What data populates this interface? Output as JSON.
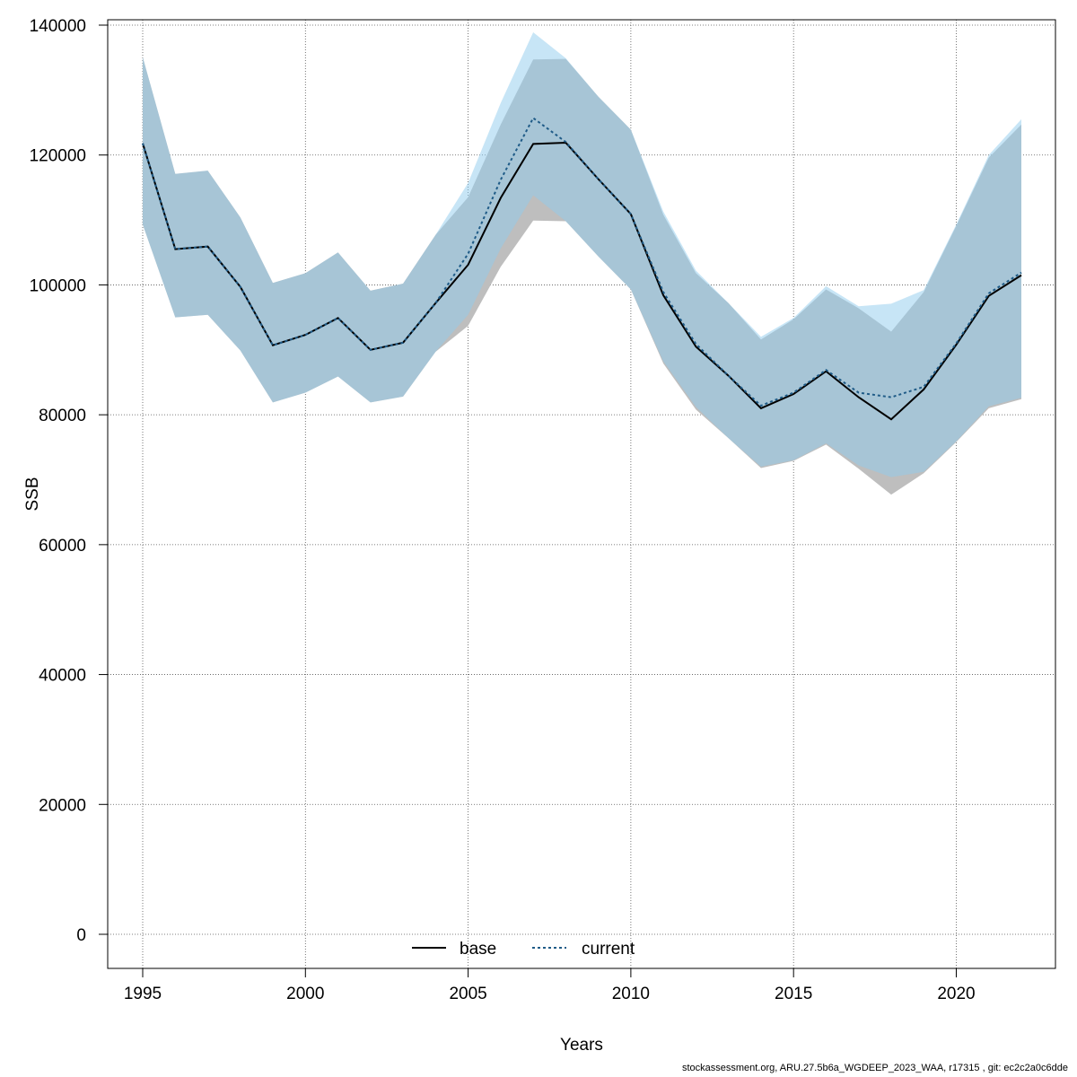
{
  "chart_data": {
    "type": "line",
    "xlabel": "Years",
    "ylabel": "SSB",
    "xlim": [
      1995,
      2022
    ],
    "ylim": [
      0,
      140000
    ],
    "x_ticks": [
      1995,
      2000,
      2005,
      2010,
      2015,
      2020
    ],
    "y_ticks": [
      0,
      20000,
      40000,
      60000,
      80000,
      100000,
      120000,
      140000
    ],
    "grid": true,
    "legend_position": "bottom-center",
    "x": [
      1995,
      1996,
      1997,
      1998,
      1999,
      2000,
      2001,
      2002,
      2003,
      2004,
      2005,
      2006,
      2007,
      2008,
      2009,
      2010,
      2011,
      2012,
      2013,
      2014,
      2015,
      2016,
      2017,
      2018,
      2019,
      2020,
      2021,
      2022
    ],
    "series": [
      {
        "name": "base",
        "line_style": "solid",
        "line_color": "#000000",
        "band_color": "#bebebe",
        "values": [
          121800,
          105500,
          105900,
          99700,
          90700,
          92300,
          94900,
          90000,
          91100,
          97200,
          103100,
          113400,
          121700,
          121900,
          116300,
          110900,
          98400,
          90500,
          86000,
          81000,
          83200,
          86700,
          82700,
          79300,
          83900,
          90800,
          98300,
          101500
        ],
        "lower": [
          109300,
          95000,
          95400,
          89900,
          81900,
          83400,
          85900,
          81900,
          82800,
          89700,
          93700,
          102800,
          109900,
          109800,
          104400,
          99300,
          87900,
          80800,
          76400,
          71800,
          72900,
          75400,
          71700,
          67700,
          71000,
          75800,
          81000,
          82400
        ],
        "upper": [
          135100,
          117100,
          117600,
          110400,
          100300,
          101800,
          105000,
          99100,
          100200,
          107700,
          113500,
          124700,
          134700,
          134800,
          129000,
          123900,
          110800,
          101800,
          97200,
          91600,
          94700,
          99300,
          96400,
          92800,
          98900,
          109100,
          119600,
          124700
        ]
      },
      {
        "name": "current",
        "line_style": "dotted",
        "line_color": "#1f5b87",
        "band_color": "#8fcbee",
        "values": [
          121800,
          105500,
          105900,
          99700,
          90700,
          92300,
          94900,
          90000,
          91100,
          97200,
          104800,
          116200,
          125700,
          122000,
          116300,
          110900,
          98900,
          90900,
          86000,
          81400,
          83400,
          86900,
          83400,
          82700,
          84300,
          91000,
          98700,
          101900
        ],
        "lower": [
          109300,
          95000,
          95400,
          89900,
          81900,
          83400,
          85900,
          81900,
          82800,
          89700,
          95400,
          105600,
          113800,
          109800,
          104400,
          99300,
          88200,
          81200,
          76400,
          72000,
          73000,
          75600,
          72200,
          70400,
          71200,
          75900,
          81300,
          82600
        ],
        "upper": [
          135100,
          117100,
          117600,
          110400,
          100300,
          101800,
          105000,
          99100,
          100200,
          107700,
          115700,
          128000,
          138900,
          134900,
          129000,
          123900,
          111300,
          102200,
          97200,
          92000,
          94900,
          99800,
          96700,
          97100,
          99200,
          109300,
          120000,
          125500
        ]
      }
    ]
  },
  "footer_text": "stockassessment.org, ARU.27.5b6a_WGDEEP_2023_WAA, r17315 , git: ec2c2a0c6dde"
}
